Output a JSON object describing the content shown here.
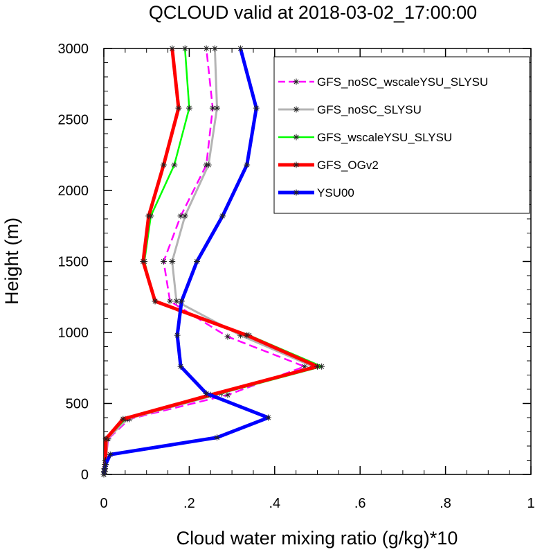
{
  "chart_data": {
    "type": "line",
    "title": "QCLOUD valid at 2018-03-02_17:00:00",
    "xlabel": "Cloud water mixing ratio (g/kg)*10",
    "ylabel": "Height (m)",
    "xlim": [
      0,
      1
    ],
    "ylim": [
      0,
      3000
    ],
    "x_ticks": [
      0,
      0.2,
      0.4,
      0.6,
      0.8,
      1
    ],
    "x_tick_labels": [
      "0",
      ".2",
      ".4",
      ".6",
      ".8",
      "1"
    ],
    "y_ticks": [
      0,
      500,
      1000,
      1500,
      2000,
      2500,
      3000
    ],
    "y_tick_labels": [
      "0",
      "500",
      "1000",
      "1500",
      "2000",
      "2500",
      "3000"
    ],
    "grid": false,
    "legend_position": "top-right",
    "series": [
      {
        "name": "GFS_noSC_wscaleYSU_SLYSU",
        "color": "#ff00ff",
        "dash": true,
        "x": [
          0.0,
          0.002,
          0.002,
          0.004,
          0.005,
          0.01,
          0.06,
          0.29,
          0.47,
          0.29,
          0.155,
          0.14,
          0.18,
          0.24,
          0.255,
          0.24
        ],
        "y": [
          0,
          20,
          40,
          70,
          100,
          250,
          390,
          560,
          760,
          970,
          1220,
          1500,
          1820,
          2180,
          2580,
          3000
        ]
      },
      {
        "name": "GFS_noSC_SLYSU",
        "color": "#b4b4b4",
        "dash": false,
        "x": [
          0.0,
          0.002,
          0.002,
          0.004,
          0.006,
          0.008,
          0.055,
          0.275,
          0.49,
          0.32,
          0.17,
          0.16,
          0.19,
          0.245,
          0.265,
          0.26
        ],
        "y": [
          0,
          20,
          40,
          70,
          100,
          250,
          390,
          570,
          760,
          980,
          1220,
          1500,
          1820,
          2180,
          2580,
          3000
        ]
      },
      {
        "name": "GFS_wscaleYSU_SLYSU",
        "color": "#00ff00",
        "dash": false,
        "x": [
          0.0,
          0.001,
          0.002,
          0.003,
          0.004,
          0.006,
          0.05,
          0.26,
          0.51,
          0.34,
          0.12,
          0.095,
          0.11,
          0.165,
          0.2,
          0.19
        ],
        "y": [
          0,
          20,
          40,
          70,
          100,
          250,
          390,
          560,
          760,
          980,
          1220,
          1500,
          1820,
          2180,
          2580,
          3000
        ]
      },
      {
        "name": "GFS_OGv2",
        "color": "#ff0000",
        "dash": false,
        "x": [
          0.0,
          0.001,
          0.002,
          0.003,
          0.004,
          0.005,
          0.045,
          0.25,
          0.5,
          0.335,
          0.12,
          0.092,
          0.105,
          0.14,
          0.175,
          0.16
        ],
        "y": [
          0,
          20,
          40,
          70,
          100,
          250,
          390,
          560,
          760,
          980,
          1220,
          1500,
          1820,
          2180,
          2580,
          3000
        ]
      },
      {
        "name": "YSU00",
        "color": "#0000ff",
        "dash": false,
        "x": [
          0.0,
          0.001,
          0.002,
          0.004,
          0.015,
          0.265,
          0.385,
          0.24,
          0.18,
          0.172,
          0.182,
          0.218,
          0.278,
          0.335,
          0.357,
          0.32
        ],
        "y": [
          0,
          20,
          40,
          70,
          140,
          260,
          400,
          570,
          760,
          980,
          1220,
          1500,
          1820,
          2180,
          2580,
          3000
        ]
      }
    ]
  }
}
